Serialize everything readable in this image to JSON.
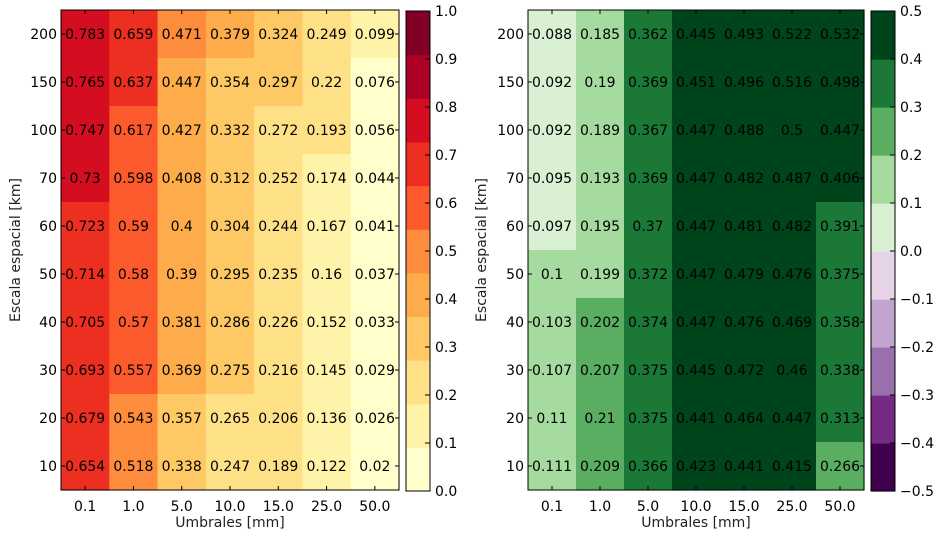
{
  "chart_data": [
    {
      "type": "heatmap",
      "title": "",
      "xlabel": "Umbrales [mm]",
      "ylabel": "Escala espacial [km]",
      "x_categories": [
        "0.1",
        "1.0",
        "5.0",
        "10.0",
        "15.0",
        "25.0",
        "50.0"
      ],
      "y_categories": [
        "200",
        "150",
        "100",
        "70",
        "60",
        "50",
        "40",
        "30",
        "20",
        "10"
      ],
      "values": [
        [
          0.783,
          0.659,
          0.471,
          0.379,
          0.324,
          0.249,
          0.099
        ],
        [
          0.765,
          0.637,
          0.447,
          0.354,
          0.297,
          0.22,
          0.076
        ],
        [
          0.747,
          0.617,
          0.427,
          0.332,
          0.272,
          0.193,
          0.056
        ],
        [
          0.73,
          0.598,
          0.408,
          0.312,
          0.252,
          0.174,
          0.044
        ],
        [
          0.723,
          0.59,
          0.4,
          0.304,
          0.244,
          0.167,
          0.041
        ],
        [
          0.714,
          0.58,
          0.39,
          0.295,
          0.235,
          0.16,
          0.037
        ],
        [
          0.705,
          0.57,
          0.381,
          0.286,
          0.226,
          0.152,
          0.033
        ],
        [
          0.693,
          0.557,
          0.369,
          0.275,
          0.216,
          0.145,
          0.029
        ],
        [
          0.679,
          0.543,
          0.357,
          0.265,
          0.206,
          0.136,
          0.026
        ],
        [
          0.654,
          0.518,
          0.338,
          0.247,
          0.189,
          0.122,
          0.02
        ]
      ],
      "cell_labels": [
        [
          "0.783",
          "0.659",
          "0.471",
          "0.379",
          "0.324",
          "0.249",
          "0.099"
        ],
        [
          "0.765",
          "0.637",
          "0.447",
          "0.354",
          "0.297",
          "0.22",
          "0.076"
        ],
        [
          "0.747",
          "0.617",
          "0.427",
          "0.332",
          "0.272",
          "0.193",
          "0.056"
        ],
        [
          "0.73",
          "0.598",
          "0.408",
          "0.312",
          "0.252",
          "0.174",
          "0.044"
        ],
        [
          "0.723",
          "0.59",
          "0.4",
          "0.304",
          "0.244",
          "0.167",
          "0.041"
        ],
        [
          "0.714",
          "0.58",
          "0.39",
          "0.295",
          "0.235",
          "0.16",
          "0.037"
        ],
        [
          "0.705",
          "0.57",
          "0.381",
          "0.286",
          "0.226",
          "0.152",
          "0.033"
        ],
        [
          "0.693",
          "0.557",
          "0.369",
          "0.275",
          "0.216",
          "0.145",
          "0.029"
        ],
        [
          "0.679",
          "0.543",
          "0.357",
          "0.265",
          "0.206",
          "0.136",
          "0.026"
        ],
        [
          "0.654",
          "0.518",
          "0.338",
          "0.247",
          "0.189",
          "0.122",
          "0.02"
        ]
      ],
      "colorbar": {
        "ticks": [
          "0.0",
          "0.1",
          "0.2",
          "0.3",
          "0.4",
          "0.5",
          "0.6",
          "0.7",
          "0.8",
          "0.9",
          "1.0"
        ],
        "range": [
          0,
          1
        ],
        "colors": [
          "#ffffcc",
          "#fff2a9",
          "#fee187",
          "#fec965",
          "#feab4b",
          "#fd8c3c",
          "#fc5a2d",
          "#ec2f21",
          "#d40d20",
          "#af0026",
          "#800026"
        ]
      },
      "grid": false,
      "legend": "colorbar-right"
    },
    {
      "type": "heatmap",
      "title": "",
      "xlabel": "Umbrales [mm]",
      "ylabel": "Escala espacial [km]",
      "x_categories": [
        "0.1",
        "1.0",
        "5.0",
        "10.0",
        "15.0",
        "25.0",
        "50.0"
      ],
      "y_categories": [
        "200",
        "150",
        "100",
        "70",
        "60",
        "50",
        "40",
        "30",
        "20",
        "10"
      ],
      "values": [
        [
          0.088,
          0.185,
          0.362,
          0.445,
          0.493,
          0.522,
          0.532
        ],
        [
          0.092,
          0.19,
          0.369,
          0.451,
          0.496,
          0.516,
          0.498
        ],
        [
          0.092,
          0.189,
          0.367,
          0.447,
          0.488,
          0.5,
          0.447
        ],
        [
          0.095,
          0.193,
          0.369,
          0.447,
          0.482,
          0.487,
          0.406
        ],
        [
          0.097,
          0.195,
          0.37,
          0.447,
          0.481,
          0.482,
          0.391
        ],
        [
          0.1,
          0.199,
          0.372,
          0.447,
          0.479,
          0.476,
          0.375
        ],
        [
          0.103,
          0.202,
          0.374,
          0.447,
          0.476,
          0.469,
          0.358
        ],
        [
          0.107,
          0.207,
          0.375,
          0.445,
          0.472,
          0.46,
          0.338
        ],
        [
          0.11,
          0.21,
          0.375,
          0.441,
          0.464,
          0.447,
          0.313
        ],
        [
          0.111,
          0.209,
          0.366,
          0.423,
          0.441,
          0.415,
          0.266
        ]
      ],
      "cell_labels": [
        [
          "0.088",
          "0.185",
          "0.362",
          "0.445",
          "0.493",
          "0.522",
          "0.532"
        ],
        [
          "0.092",
          "0.19",
          "0.369",
          "0.451",
          "0.496",
          "0.516",
          "0.498"
        ],
        [
          "0.092",
          "0.189",
          "0.367",
          "0.447",
          "0.488",
          "0.5",
          "0.447"
        ],
        [
          "0.095",
          "0.193",
          "0.369",
          "0.447",
          "0.482",
          "0.487",
          "0.406"
        ],
        [
          "0.097",
          "0.195",
          "0.37",
          "0.447",
          "0.481",
          "0.482",
          "0.391"
        ],
        [
          "0.1",
          "0.199",
          "0.372",
          "0.447",
          "0.479",
          "0.476",
          "0.375"
        ],
        [
          "0.103",
          "0.202",
          "0.374",
          "0.447",
          "0.476",
          "0.469",
          "0.358"
        ],
        [
          "0.107",
          "0.207",
          "0.375",
          "0.445",
          "0.472",
          "0.46",
          "0.338"
        ],
        [
          "0.11",
          "0.21",
          "0.375",
          "0.441",
          "0.464",
          "0.447",
          "0.313"
        ],
        [
          "0.111",
          "0.209",
          "0.366",
          "0.423",
          "0.441",
          "0.415",
          "0.266"
        ]
      ],
      "colorbar": {
        "ticks": [
          "−0.5",
          "−0.4",
          "−0.3",
          "−0.2",
          "−0.1",
          "0.0",
          "0.1",
          "0.2",
          "0.3",
          "0.4",
          "0.5"
        ],
        "range": [
          -0.5,
          0.5
        ],
        "colors": [
          "#40004b",
          "#762a83",
          "#9970ab",
          "#c2a5cf",
          "#e7d4e8",
          "#d9f0d3",
          "#a6dba0",
          "#5aae61",
          "#1b7837",
          "#00441b"
        ]
      },
      "grid": false,
      "legend": "colorbar-right"
    }
  ]
}
